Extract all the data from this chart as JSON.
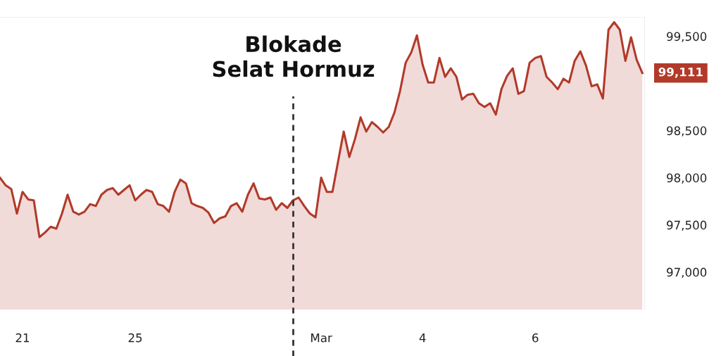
{
  "chart_data": {
    "type": "area",
    "color": "#b23a2a",
    "categories": [
      null,
      null,
      null,
      null,
      "21",
      null,
      null,
      null,
      null,
      null,
      null,
      null,
      null,
      null,
      null,
      null,
      null,
      null,
      null,
      null,
      null,
      null,
      null,
      null,
      "25",
      null,
      null,
      null,
      null,
      null,
      null,
      null,
      null,
      null,
      null,
      null,
      null,
      null,
      null,
      null,
      null,
      null,
      null,
      null,
      null,
      null,
      null,
      null,
      null,
      null,
      null,
      null,
      null,
      null,
      null,
      null,
      null,
      "Mar",
      null,
      null,
      null,
      null,
      null,
      null,
      null,
      null,
      null,
      null,
      null,
      null,
      null,
      null,
      null,
      null,
      null,
      "4",
      null,
      null,
      null,
      null,
      null,
      null,
      null,
      null,
      null,
      null,
      null,
      null,
      null,
      null,
      null,
      null,
      null,
      null,
      null,
      "6",
      null,
      null,
      null,
      null,
      null,
      null,
      null,
      null,
      null,
      null,
      null,
      null,
      null,
      null,
      null,
      null,
      null,
      null,
      null
    ],
    "values": [
      98000,
      97920,
      97880,
      97620,
      97850,
      97770,
      97760,
      97370,
      97420,
      97480,
      97460,
      97620,
      97820,
      97640,
      97610,
      97640,
      97720,
      97700,
      97820,
      97870,
      97890,
      97820,
      97870,
      97920,
      97760,
      97820,
      97870,
      97850,
      97720,
      97700,
      97640,
      97850,
      97980,
      97940,
      97730,
      97700,
      97680,
      97630,
      97520,
      97570,
      97590,
      97700,
      97730,
      97640,
      97820,
      97940,
      97780,
      97770,
      97790,
      97660,
      97730,
      97680,
      97760,
      97790,
      97700,
      97620,
      97580,
      98000,
      97850,
      97850,
      98170,
      98490,
      98220,
      98410,
      98640,
      98490,
      98590,
      98540,
      98480,
      98540,
      98690,
      98920,
      99220,
      99330,
      99510,
      99200,
      99010,
      99010,
      99270,
      99070,
      99160,
      99070,
      98830,
      98880,
      98890,
      98790,
      98750,
      98790,
      98670,
      98940,
      99080,
      99160,
      98890,
      98920,
      99220,
      99270,
      99290,
      99070,
      99010,
      98940,
      99050,
      99010,
      99240,
      99340,
      99190,
      98970,
      98990,
      98840,
      99570,
      99650,
      99570,
      99240,
      99490,
      99250,
      99111
    ],
    "value_labels": [
      null,
      null,
      null,
      null,
      null,
      null,
      null,
      null,
      null,
      null,
      null,
      null,
      null,
      null,
      null,
      null,
      null,
      null,
      null,
      null,
      null,
      null,
      null,
      null,
      null,
      null,
      null,
      null,
      null,
      null,
      null,
      null,
      null,
      null,
      null,
      null,
      null,
      null,
      null,
      null,
      null,
      null,
      null,
      null,
      null,
      null,
      null,
      null,
      null,
      null,
      null,
      null,
      null,
      null,
      null,
      null,
      null,
      null,
      null,
      null,
      null,
      null,
      null,
      null,
      null,
      null,
      null,
      null,
      null,
      null,
      null,
      null,
      null,
      null,
      null,
      null,
      null,
      null,
      null,
      null,
      null,
      null,
      null,
      null,
      null,
      null,
      null,
      null,
      null,
      null,
      null,
      null,
      null,
      null,
      null,
      null,
      null,
      null,
      null,
      null,
      null,
      null,
      null,
      null,
      null,
      null,
      null,
      null,
      null,
      null,
      null,
      null,
      null,
      null,
      "99,111"
    ],
    "ylim": [
      96600,
      99700
    ],
    "yticks": [
      {
        "value": 97000,
        "label": "97,000"
      },
      {
        "value": 97500,
        "label": "97,500"
      },
      {
        "value": 98000,
        "label": "98,000"
      },
      {
        "value": 98500,
        "label": "98,500"
      },
      {
        "value": 99500,
        "label": "99,500"
      }
    ],
    "annotations": [
      "Blokade Selat Hormuz"
    ],
    "grid": false
  }
}
